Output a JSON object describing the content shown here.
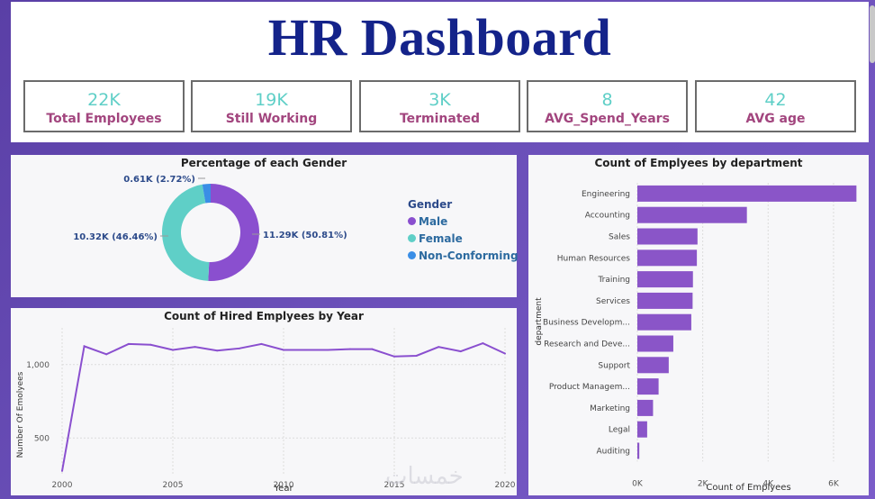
{
  "header": {
    "title": "HR Dashboard"
  },
  "kpis": [
    {
      "value": "22K",
      "label": "Total Employees"
    },
    {
      "value": "19K",
      "label": "Still Working"
    },
    {
      "value": "3K",
      "label": "Terminated"
    },
    {
      "value": "8",
      "label": "AVG_Spend_Years"
    },
    {
      "value": "42",
      "label": "AVG age"
    }
  ],
  "colors": {
    "title": "#14238a",
    "kpi_value": "#5fcfc7",
    "kpi_label": "#a2457e",
    "male": "#8a4fcf",
    "female": "#5fcfc7",
    "non_conforming": "#3a8ee6",
    "bar": "#8a55c8",
    "line": "#8a4fcf"
  },
  "watermark": "خمسات",
  "chart_data": [
    {
      "type": "pie",
      "title": "Percentage of each Gender",
      "legend_title": "Gender",
      "legend_position": "right",
      "slices": [
        {
          "name": "Male",
          "value": 11.29,
          "percent": 50.81,
          "label": "11.29K (50.81%)",
          "color": "#8a4fcf"
        },
        {
          "name": "Female",
          "value": 10.32,
          "percent": 46.46,
          "label": "10.32K (46.46%)",
          "color": "#5fcfc7"
        },
        {
          "name": "Non-Conforming",
          "value": 0.61,
          "percent": 2.72,
          "label": "0.61K (2.72%)",
          "color": "#3a8ee6"
        }
      ]
    },
    {
      "type": "line",
      "title": "Count of Hired Emplyees by Year",
      "xlabel": "Year",
      "ylabel": "Number Of Emolyees",
      "xlim": [
        2000,
        2020
      ],
      "ylim": [
        250,
        1250
      ],
      "xticks": [
        "2000",
        "2005",
        "2010",
        "2015",
        "2020"
      ],
      "yticks": [
        "500",
        "1,000"
      ],
      "grid": true,
      "x": [
        2000,
        2001,
        2002,
        2003,
        2004,
        2005,
        2006,
        2007,
        2008,
        2009,
        2010,
        2011,
        2012,
        2013,
        2014,
        2015,
        2016,
        2017,
        2018,
        2019,
        2020
      ],
      "y": [
        275,
        1125,
        1070,
        1140,
        1135,
        1100,
        1120,
        1095,
        1110,
        1140,
        1100,
        1100,
        1100,
        1105,
        1105,
        1055,
        1060,
        1120,
        1090,
        1145,
        1075
      ]
    },
    {
      "type": "bar",
      "orientation": "horizontal",
      "title": "Count of Emplyees by department",
      "xlabel": "Count of Emplyees",
      "ylabel": "department",
      "xlim": [
        0,
        6800
      ],
      "xticks": [
        "0K",
        "2K",
        "4K",
        "6K"
      ],
      "grid": true,
      "categories": [
        "Engineering",
        "Accounting",
        "Sales",
        "Human Resources",
        "Training",
        "Services",
        "Business Developm...",
        "Research and Deve...",
        "Support",
        "Product Managem...",
        "Marketing",
        "Legal",
        "Auditing"
      ],
      "values": [
        6700,
        3350,
        1840,
        1820,
        1700,
        1690,
        1650,
        1100,
        960,
        650,
        480,
        300,
        60
      ]
    }
  ]
}
